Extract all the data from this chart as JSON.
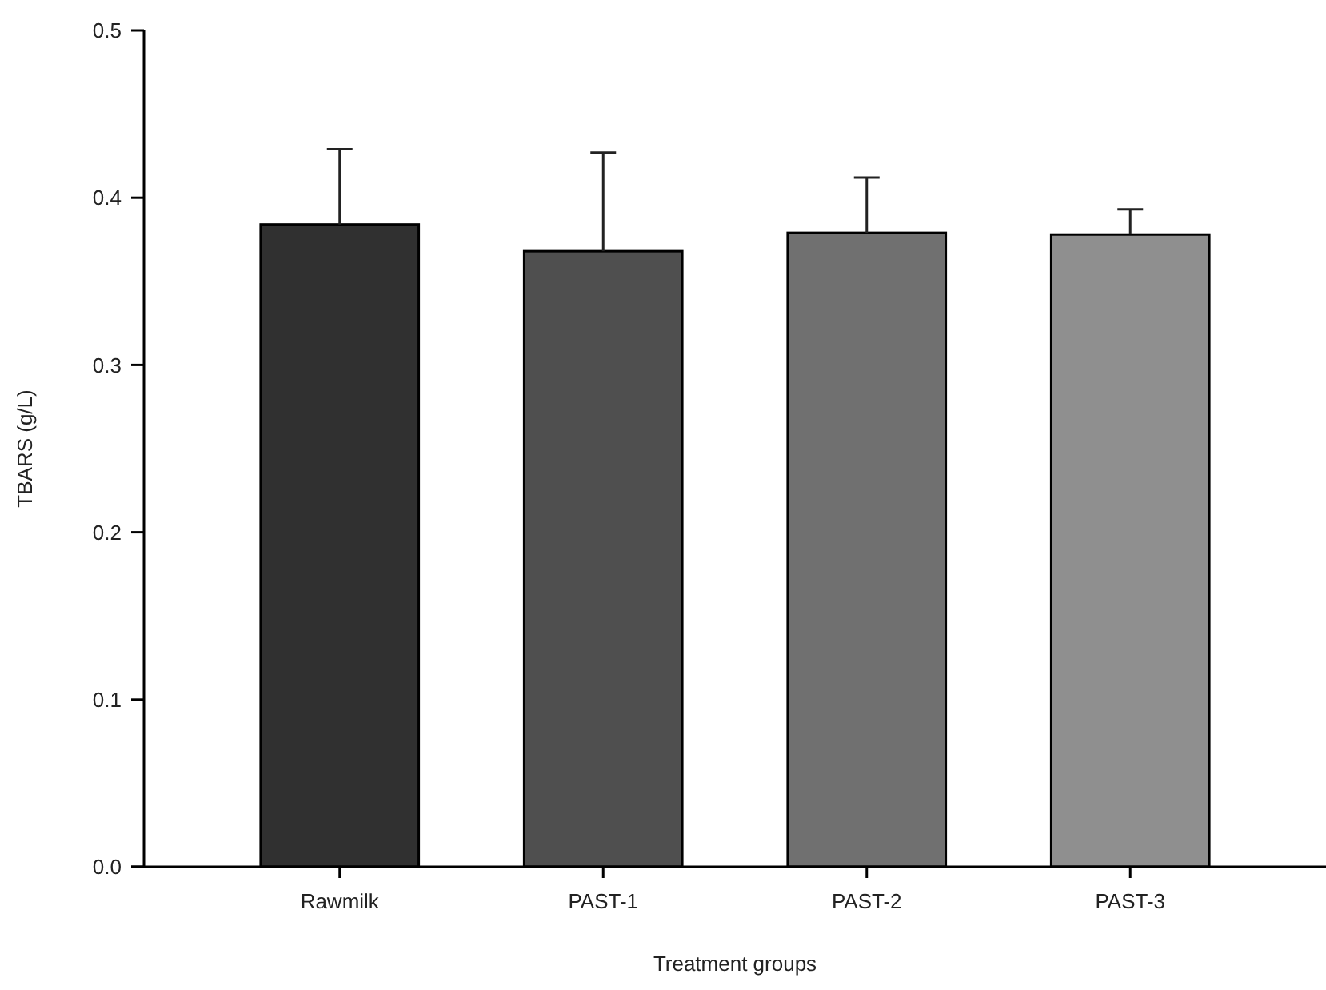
{
  "chart_data": {
    "type": "bar",
    "xlabel": "Treatment groups",
    "ylabel": "TBARS (g/L)",
    "categories": [
      "Rawmilk",
      "PAST-1",
      "PAST-2",
      "PAST-3"
    ],
    "values": [
      0.384,
      0.368,
      0.379,
      0.378
    ],
    "errors": [
      0.045,
      0.059,
      0.033,
      0.015
    ],
    "colors": [
      "#303030",
      "#4f4f4f",
      "#707070",
      "#8f8f8f"
    ],
    "ylim": [
      0,
      0.5
    ],
    "yticks": [
      {
        "value": 0,
        "label": "0.0"
      },
      0.1,
      0.2,
      0.3,
      0.4,
      0.5
    ],
    "grid": false
  }
}
